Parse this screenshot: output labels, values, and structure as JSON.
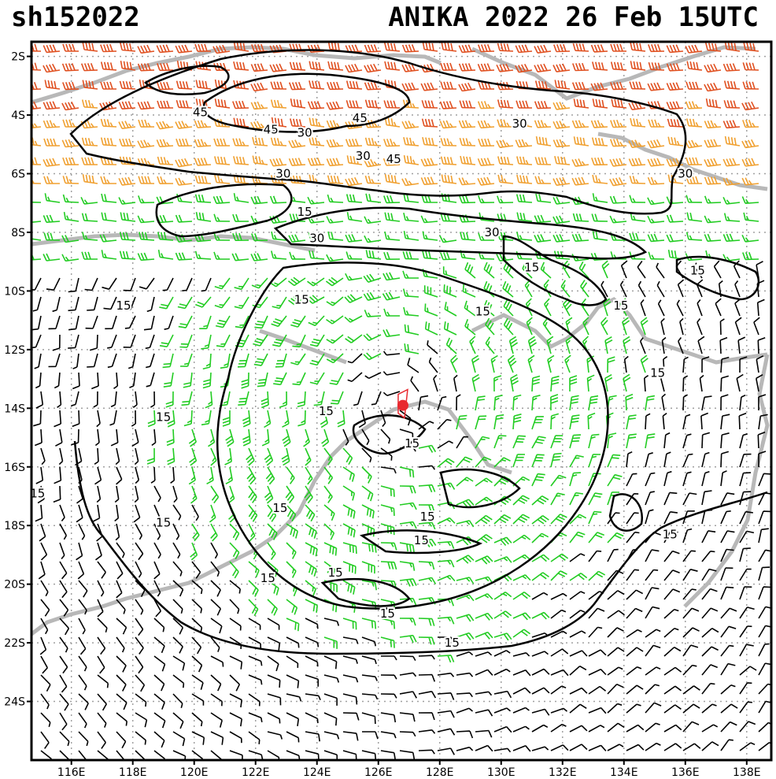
{
  "header": {
    "storm_id": "sh152022",
    "title": "ANIKA 2022 26 Feb 15UTC"
  },
  "axes": {
    "lat_labels": [
      "2S",
      "4S",
      "6S",
      "8S",
      "10S",
      "12S",
      "14S",
      "16S",
      "18S",
      "20S",
      "22S",
      "24S"
    ],
    "lat_values": [
      -2,
      -4,
      -6,
      -8,
      -10,
      -12,
      -14,
      -16,
      -18,
      -20,
      -22,
      -24
    ],
    "lon_labels": [
      "116E",
      "118E",
      "120E",
      "122E",
      "124E",
      "126E",
      "128E",
      "130E",
      "132E",
      "134E",
      "136E",
      "138E"
    ],
    "lon_values": [
      116,
      118,
      120,
      122,
      124,
      126,
      128,
      130,
      132,
      134,
      136,
      138
    ],
    "lon_range": [
      114.7,
      138.8
    ],
    "lat_range": [
      -26.0,
      -1.5
    ],
    "grid": "dotted"
  },
  "storm_center": {
    "lat": -13.9,
    "lon": 126.8,
    "color": "#e8292f"
  },
  "wind_colors": {
    "lt15": "#000000",
    "15to30": "#22cc22",
    "30to45": "#f0a030",
    "ge45": "#e05020"
  },
  "contour_labels": [
    {
      "text": "45",
      "lat": -3.9,
      "lon": 120.2
    },
    {
      "text": "45",
      "lat": -4.5,
      "lon": 122.5
    },
    {
      "text": "30",
      "lat": -4.6,
      "lon": 123.6
    },
    {
      "text": "45",
      "lat": -4.1,
      "lon": 125.4
    },
    {
      "text": "30",
      "lat": -5.4,
      "lon": 125.5
    },
    {
      "text": "45",
      "lat": -5.5,
      "lon": 126.5
    },
    {
      "text": "30",
      "lat": -4.3,
      "lon": 130.6
    },
    {
      "text": "30",
      "lat": -6.0,
      "lon": 122.9
    },
    {
      "text": "30",
      "lat": -6.0,
      "lon": 136.0
    },
    {
      "text": "15",
      "lat": -7.3,
      "lon": 123.6
    },
    {
      "text": "30",
      "lat": -8.0,
      "lon": 129.7
    },
    {
      "text": "30",
      "lat": -8.2,
      "lon": 124.0
    },
    {
      "text": "15",
      "lat": -9.2,
      "lon": 131.0
    },
    {
      "text": "15",
      "lat": -9.3,
      "lon": 136.4
    },
    {
      "text": "15",
      "lat": -10.5,
      "lon": 117.7
    },
    {
      "text": "15",
      "lat": -10.3,
      "lon": 123.5
    },
    {
      "text": "15",
      "lat": -10.7,
      "lon": 129.4
    },
    {
      "text": "15",
      "lat": -10.5,
      "lon": 133.9
    },
    {
      "text": "15",
      "lat": -12.8,
      "lon": 135.1
    },
    {
      "text": "15",
      "lat": -14.3,
      "lon": 119.0
    },
    {
      "text": "15",
      "lat": -14.1,
      "lon": 124.3
    },
    {
      "text": "15",
      "lat": -15.2,
      "lon": 127.1
    },
    {
      "text": "15",
      "lat": -16.9,
      "lon": 114.9
    },
    {
      "text": "15",
      "lat": -17.4,
      "lon": 122.8
    },
    {
      "text": "15",
      "lat": -17.9,
      "lon": 119.0
    },
    {
      "text": "15",
      "lat": -17.7,
      "lon": 127.6
    },
    {
      "text": "15",
      "lat": -18.5,
      "lon": 127.4
    },
    {
      "text": "15",
      "lat": -18.3,
      "lon": 135.5
    },
    {
      "text": "15",
      "lat": -19.8,
      "lon": 122.4
    },
    {
      "text": "15",
      "lat": -19.6,
      "lon": 124.6
    },
    {
      "text": "15",
      "lat": -21.0,
      "lon": 126.3
    },
    {
      "text": "15",
      "lat": -22.0,
      "lon": 128.4
    }
  ]
}
